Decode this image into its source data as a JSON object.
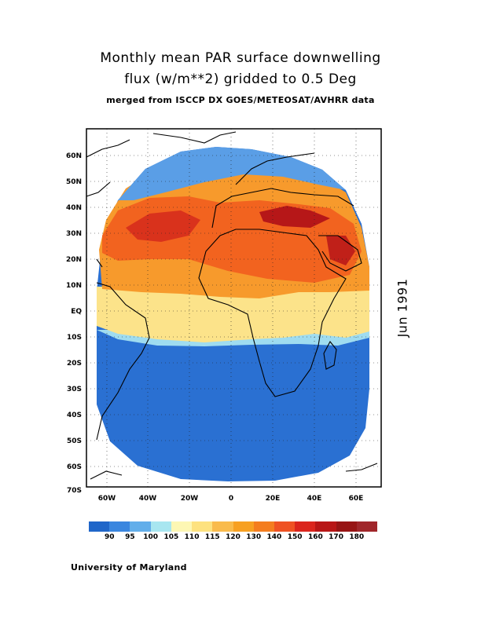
{
  "title": {
    "line1": "Monthly mean PAR surface downwelling",
    "line2": "flux (w/m**2) gridded to 0.5 Deg",
    "line3": "merged from ISCCP DX GOES/METEOSAT/AVHRR data"
  },
  "date_label": "Jun 1991",
  "credit": "University of Maryland",
  "map": {
    "lon_range": [
      -70,
      70
    ],
    "lat_range": [
      -70,
      70
    ],
    "lat_labels": [
      "60N",
      "50N",
      "40N",
      "30N",
      "20N",
      "10N",
      "EQ",
      "10S",
      "20S",
      "30S",
      "40S",
      "50S",
      "60S",
      "70S"
    ],
    "lon_labels": [
      "60W",
      "40W",
      "20W",
      "0",
      "20E",
      "40E",
      "60E"
    ]
  },
  "colorbar": {
    "colors": [
      "#1f66c9",
      "#3a86df",
      "#62aeea",
      "#a8e6f0",
      "#fdf7b4",
      "#fde27f",
      "#f9bb4c",
      "#f7a022",
      "#f47d1f",
      "#ef5223",
      "#db251d",
      "#b81616",
      "#971414",
      "#a0262a"
    ],
    "labels": [
      "90",
      "95",
      "100",
      "105",
      "110",
      "115",
      "120",
      "130",
      "140",
      "150",
      "160",
      "170",
      "180"
    ]
  }
}
